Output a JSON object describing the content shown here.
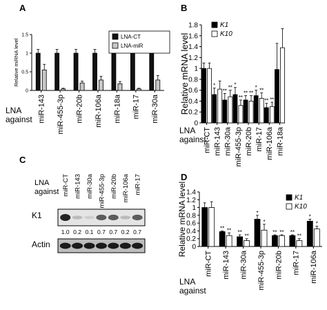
{
  "panel_letters": [
    "A",
    "B",
    "C",
    "D"
  ],
  "lna_against": [
    "LNA",
    "against"
  ],
  "chart_data": [
    {
      "panel": "A",
      "type": "bar",
      "ylabel": "Relative miRNA level",
      "ylim": [
        0,
        1.5
      ],
      "yticks": [
        0,
        0.5,
        1,
        1.5
      ],
      "categories": [
        "miR-143",
        "miR-455-3p",
        "miR-20b",
        "miR-106a",
        "miR-18a",
        "miR-17",
        "miR-30a"
      ],
      "series": [
        {
          "name": "LNA-CT",
          "color": "#111111",
          "values": [
            1.0,
            1.0,
            1.0,
            1.0,
            1.0,
            1.0,
            1.0
          ],
          "errors": [
            0.1,
            0.1,
            0.1,
            0.1,
            0.3,
            0.04,
            0.35
          ]
        },
        {
          "name": "LNA-miR",
          "color": "#c8c8c8",
          "values": [
            0.55,
            0.04,
            0.2,
            0.28,
            0.18,
            0.04,
            0.28
          ],
          "errors": [
            0.15,
            0.02,
            0.05,
            0.1,
            0.06,
            0.02,
            0.12
          ]
        }
      ],
      "legend": "top-right"
    },
    {
      "panel": "B",
      "type": "bar",
      "ylabel": "Relative mRNA level",
      "ylim": [
        0,
        1.8
      ],
      "yticks": [
        0,
        0.2,
        0.4,
        0.6,
        0.8,
        1,
        1.2,
        1.4,
        1.6,
        1.8
      ],
      "categories": [
        "miR-CT",
        "miR-143",
        "miR-30a",
        "miR-455-3p",
        "miR-20b",
        "miR-17",
        "miR-106a",
        "miR-18a"
      ],
      "series": [
        {
          "name": "K1",
          "color": "#000000",
          "values": [
            1.0,
            0.52,
            0.42,
            0.52,
            0.42,
            0.5,
            0.28,
            0.98
          ],
          "errors": [
            0.1,
            0.12,
            0.12,
            0.13,
            0.08,
            0.1,
            0.08,
            0.48
          ],
          "marks": [
            "",
            "*",
            "**",
            "*",
            "**",
            "*",
            "**",
            ""
          ]
        },
        {
          "name": "K10",
          "color": "#ffffff",
          "values": [
            1.0,
            0.62,
            0.48,
            0.32,
            0.4,
            0.45,
            0.3,
            1.38
          ],
          "errors": [
            0.1,
            0.15,
            0.12,
            0.1,
            0.1,
            0.1,
            0.08,
            0.35
          ],
          "marks": [
            "",
            "",
            "**",
            "**",
            "**",
            "**",
            "**",
            ""
          ]
        }
      ],
      "legend": "top-left"
    },
    {
      "panel": "D",
      "type": "bar",
      "ylabel": "Relative mRNA level",
      "ylim": [
        0,
        1.4
      ],
      "yticks": [
        0,
        0.2,
        0.4,
        0.6,
        0.8,
        1,
        1.2,
        1.4
      ],
      "categories": [
        "miR-CT",
        "miR-143",
        "miR-30a",
        "miR-455-3p",
        "miR-20b",
        "miR-17",
        "miR-106a"
      ],
      "series": [
        {
          "name": "K1",
          "color": "#000000",
          "values": [
            1.0,
            0.38,
            0.25,
            0.7,
            0.28,
            0.28,
            0.65
          ],
          "errors": [
            0.12,
            0.02,
            0.05,
            0.1,
            0.02,
            0.02,
            0.05
          ],
          "marks": [
            "",
            "**",
            "**",
            "*",
            "**",
            "**",
            "*"
          ]
        },
        {
          "name": "K10",
          "color": "#ffffff",
          "values": [
            1.0,
            0.28,
            0.15,
            0.42,
            0.28,
            0.15,
            0.45
          ],
          "errors": [
            0.15,
            0.07,
            0.05,
            0.15,
            0.02,
            0.05,
            0.07
          ],
          "marks": [
            "",
            "**",
            "**",
            "*",
            "**",
            "**",
            "*"
          ]
        }
      ],
      "legend": "top-right"
    }
  ],
  "western_blot": {
    "panel": "C",
    "lanes": [
      "miR-CT",
      "miR-143",
      "miR-30a",
      "miR-455-3p",
      "miR-20b",
      "miR-106a",
      "miR-17"
    ],
    "rows": [
      {
        "label": "K1",
        "intensities": [
          1.0,
          0.2,
          0.1,
          0.7,
          0.7,
          0.2,
          0.7
        ],
        "quant": [
          "1.0",
          "0.2",
          "0.1",
          "0.7",
          "0.7",
          "0.2",
          "0.7"
        ]
      },
      {
        "label": "Actin",
        "intensities": [
          1.0,
          1.0,
          1.0,
          1.0,
          1.0,
          1.0,
          1.0
        ]
      }
    ]
  }
}
